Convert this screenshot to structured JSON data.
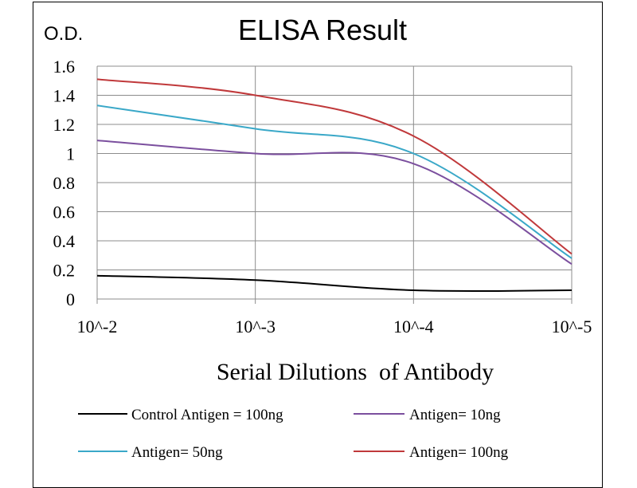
{
  "chart_data": {
    "type": "line",
    "title": "ELISA Result",
    "ylabel": "O.D.",
    "xlabel": "Serial Dilutions  of Antibody",
    "x_scale": "log",
    "x_reversed": true,
    "x": [
      0.01,
      0.001,
      0.0001,
      1e-05
    ],
    "x_tick_labels": [
      "10^-2",
      "10^-3",
      "10^-4",
      "10^-5"
    ],
    "ylim": [
      0,
      1.6
    ],
    "y_ticks": [
      0,
      0.2,
      0.4,
      0.6,
      0.8,
      1,
      1.2,
      1.4,
      1.6
    ],
    "y_tick_labels": [
      "0",
      "0.2",
      "0.4",
      "0.6",
      "0.8",
      "1",
      "1.2",
      "1.4",
      "1.6"
    ],
    "grid": true,
    "legend_position": "bottom",
    "series": [
      {
        "name": "Control Antigen = 100ng",
        "color": "#000000",
        "values": [
          0.16,
          0.13,
          0.06,
          0.06
        ]
      },
      {
        "name": "Antigen= 10ng",
        "color": "#7b4f9e",
        "values": [
          1.09,
          1.0,
          0.93,
          0.24
        ]
      },
      {
        "name": "Antigen= 50ng",
        "color": "#3aa8c8",
        "values": [
          1.33,
          1.17,
          1.0,
          0.28
        ]
      },
      {
        "name": "Antigen= 100ng",
        "color": "#c0393b",
        "values": [
          1.51,
          1.4,
          1.12,
          0.31
        ]
      }
    ]
  }
}
